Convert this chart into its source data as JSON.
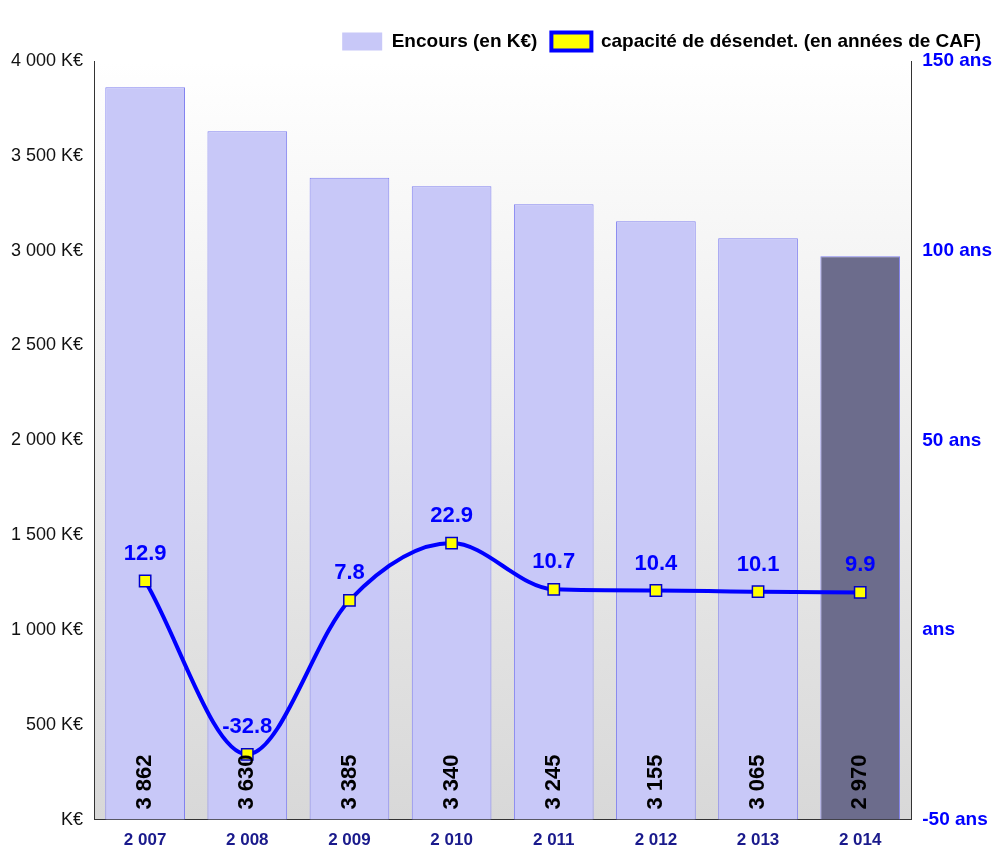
{
  "chart_data": {
    "type": "bar",
    "categories": [
      "2 007",
      "2 008",
      "2 009",
      "2 010",
      "2 011",
      "2 012",
      "2 013",
      "2 014"
    ],
    "series": [
      {
        "name": "Encours (en K€)",
        "color": "#c8c8f8",
        "colors": [
          "#c8c8f8",
          "#c8c8f8",
          "#c8c8f8",
          "#c8c8f8",
          "#c8c8f8",
          "#c8c8f8",
          "#c8c8f8",
          "#6c6c8c"
        ],
        "values": [
          3862,
          3630,
          3385,
          3340,
          3245,
          3155,
          3065,
          2970
        ],
        "value_labels": [
          "3 862",
          "3 630",
          "3 385",
          "3 340",
          "3 245",
          "3 155",
          "3 065",
          "2 970"
        ]
      },
      {
        "name": "capacité de désendet. (en années de CAF)",
        "type": "line",
        "axis": "y2",
        "color": "#0000ff",
        "marker": "square",
        "values": [
          12.9,
          -32.8,
          7.8,
          22.9,
          10.7,
          10.4,
          10.1,
          9.9
        ],
        "value_labels": [
          "12.9",
          "-32.8",
          "7.8",
          "22.9",
          "10.7",
          "10.4",
          "10.1",
          "9.9"
        ]
      }
    ],
    "ylim": [
      0,
      4000
    ],
    "yticks": [
      {
        "value": 0,
        "label": "K€"
      },
      {
        "value": 500,
        "label": "500 K€"
      },
      {
        "value": 1000,
        "label": "1 000 K€"
      },
      {
        "value": 1500,
        "label": "1 500 K€"
      },
      {
        "value": 2000,
        "label": "2 000 K€"
      },
      {
        "value": 2500,
        "label": "2 500 K€"
      },
      {
        "value": 3000,
        "label": "3 000 K€"
      },
      {
        "value": 3500,
        "label": "3 500 K€"
      },
      {
        "value": 4000,
        "label": "4 000 K€"
      }
    ],
    "y2lim": [
      -50,
      150
    ],
    "y2ticks": [
      {
        "value": -50,
        "label": "-50 ans"
      },
      {
        "value": 0,
        "label": "ans"
      },
      {
        "value": 50,
        "label": "50 ans"
      },
      {
        "value": 100,
        "label": "100 ans"
      },
      {
        "value": 150,
        "label": "150 ans"
      }
    ],
    "grid": false,
    "legend": "top right"
  }
}
